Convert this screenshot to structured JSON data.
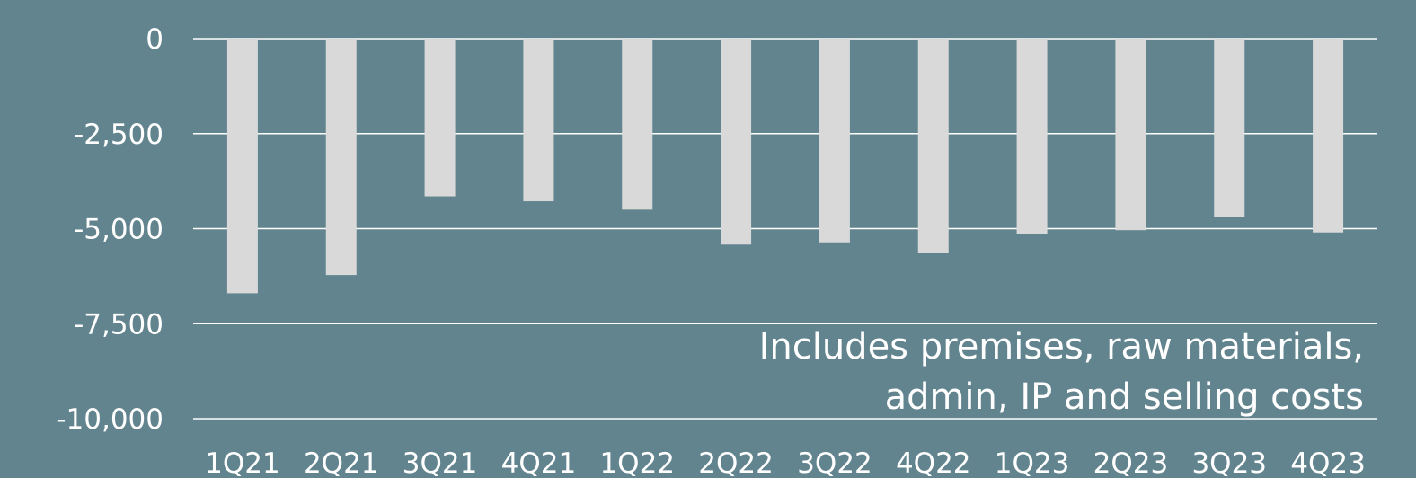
{
  "chart_data": {
    "type": "bar",
    "categories": [
      "1Q21",
      "2Q21",
      "3Q21",
      "4Q21",
      "1Q22",
      "2Q22",
      "3Q22",
      "4Q22",
      "1Q23",
      "2Q23",
      "3Q23",
      "4Q23"
    ],
    "values": [
      -6700,
      -6220,
      -4150,
      -4280,
      -4500,
      -5420,
      -5360,
      -5650,
      -5130,
      -5040,
      -4700,
      -5100
    ],
    "title": "",
    "xlabel": "",
    "ylabel": "",
    "ylim": [
      -10000,
      0
    ],
    "yticks": [
      0,
      -2500,
      -5000,
      -7500,
      -10000
    ],
    "ytick_labels": [
      "0",
      "-2,500",
      "-5,000",
      "-7,500",
      "-10,000"
    ],
    "grid": true,
    "legend": "none",
    "annotation": [
      "Includes premises, raw materials,",
      "admin, IP and selling costs"
    ],
    "colors": {
      "background": "#62848e",
      "bar": "#d9d9d9",
      "grid": "#ffffff",
      "text": "#ffffff"
    }
  }
}
